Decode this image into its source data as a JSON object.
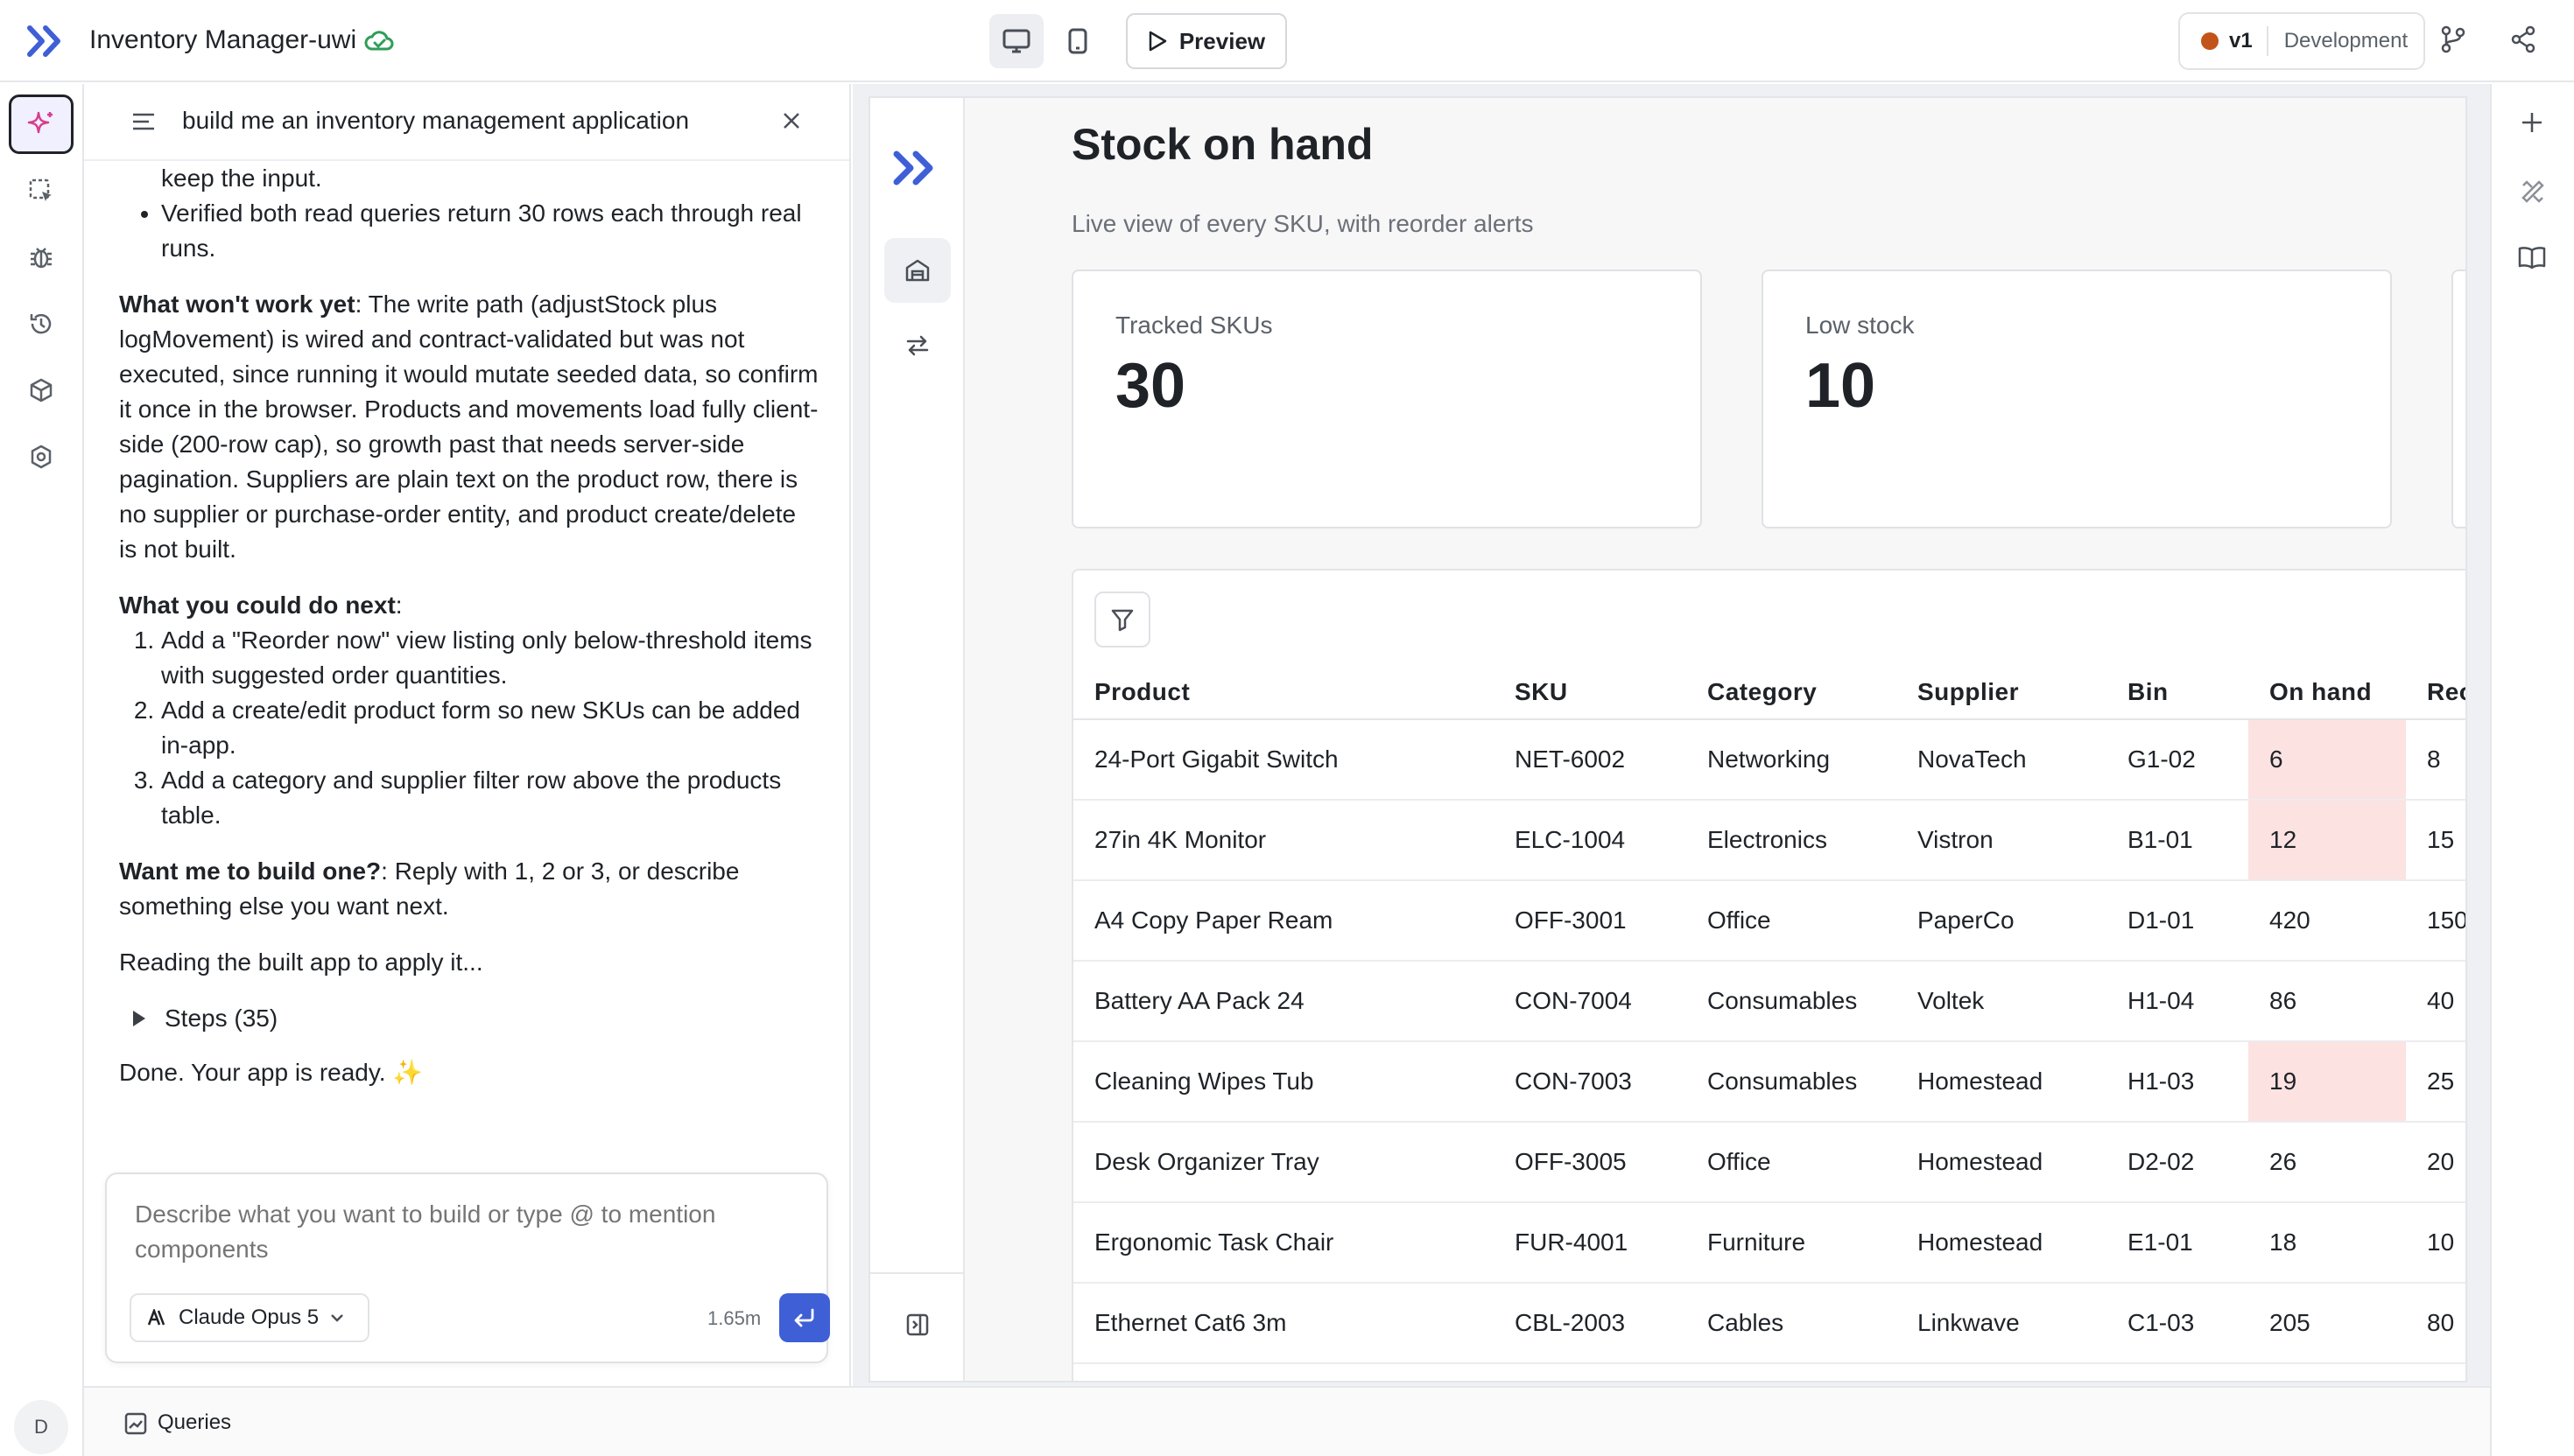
{
  "header": {
    "app_title": "Inventory Manager-uwi",
    "preview_label": "Preview",
    "version": "v1",
    "environment": "Development"
  },
  "rail": {
    "avatar_initial": "D",
    "items": [
      "ai-assistant",
      "select-element",
      "debug",
      "history",
      "components",
      "settings"
    ]
  },
  "chat": {
    "title": "build me an inventory management application",
    "cut_line": "keep the input.",
    "verified": "Verified both read queries return 30 rows each through real runs.",
    "wont_work_heading": "What won't work yet",
    "wont_work_text": ": The write path (adjustStock plus logMovement) is wired and contract-validated but was not executed, since running it would mutate seeded data, so confirm it once in the browser. Products and movements load fully client-side (200-row cap), so growth past that needs server-side pagination. Suppliers are plain text on the product row, there is no supplier or purchase-order entity, and product create/delete is not built.",
    "next_heading": "What you could do next",
    "next_colon": ":",
    "next_items": [
      "Add a \"Reorder now\" view listing only below-threshold items with suggested order quantities.",
      "Add a create/edit product form so new SKUs can be added in-app.",
      "Add a category and supplier filter row above the products table."
    ],
    "want_heading": "Want me to build one?",
    "want_text": ": Reply with 1, 2 or 3, or describe something else you want next.",
    "reading": "Reading the built app to apply it...",
    "steps_label": "Steps (35)",
    "done": "Done. Your app is ready.",
    "done_emoji": "✨",
    "composer": {
      "placeholder": "Describe what you want to build or type @ to mention components",
      "model": "Claude Opus 5",
      "tokens": "1.65m"
    }
  },
  "bottom": {
    "queries_label": "Queries"
  },
  "app": {
    "page_title": "Stock on hand",
    "page_subtitle": "Live view of every SKU, with reorder alerts",
    "stats": [
      {
        "label": "Tracked SKUs",
        "value": "30"
      },
      {
        "label": "Low stock",
        "value": "10"
      }
    ],
    "table": {
      "columns": [
        "Product",
        "SKU",
        "Category",
        "Supplier",
        "Bin",
        "On hand",
        "Reorder"
      ],
      "rows": [
        {
          "product": "24-Port Gigabit Switch",
          "sku": "NET-6002",
          "category": "Networking",
          "supplier": "NovaTech",
          "bin": "G1-02",
          "on_hand": "6",
          "reorder": "8",
          "low": true
        },
        {
          "product": "27in 4K Monitor",
          "sku": "ELC-1004",
          "category": "Electronics",
          "supplier": "Vistron",
          "bin": "B1-01",
          "on_hand": "12",
          "reorder": "15",
          "low": true
        },
        {
          "product": "A4 Copy Paper Ream",
          "sku": "OFF-3001",
          "category": "Office",
          "supplier": "PaperCo",
          "bin": "D1-01",
          "on_hand": "420",
          "reorder": "150",
          "low": false
        },
        {
          "product": "Battery AA Pack 24",
          "sku": "CON-7004",
          "category": "Consumables",
          "supplier": "Voltek",
          "bin": "H1-04",
          "on_hand": "86",
          "reorder": "40",
          "low": false
        },
        {
          "product": "Cleaning Wipes Tub",
          "sku": "CON-7003",
          "category": "Consumables",
          "supplier": "Homestead",
          "bin": "H1-03",
          "on_hand": "19",
          "reorder": "25",
          "low": true
        },
        {
          "product": "Desk Organizer Tray",
          "sku": "OFF-3005",
          "category": "Office",
          "supplier": "Homestead",
          "bin": "D2-02",
          "on_hand": "26",
          "reorder": "20",
          "low": false
        },
        {
          "product": "Ergonomic Task Chair",
          "sku": "FUR-4001",
          "category": "Furniture",
          "supplier": "Homestead",
          "bin": "E1-01",
          "on_hand": "18",
          "reorder": "10",
          "low": false
        },
        {
          "product": "Ethernet Cat6 3m",
          "sku": "CBL-2003",
          "category": "Cables",
          "supplier": "Linkwave",
          "bin": "C1-03",
          "on_hand": "205",
          "reorder": "80",
          "low": false
        }
      ]
    }
  },
  "colors": {
    "accent": "#3f5fd6",
    "low_stock_bg": "#fde2e2",
    "env_dot": "#c2541a",
    "cloud_ok": "#2e9e57"
  }
}
